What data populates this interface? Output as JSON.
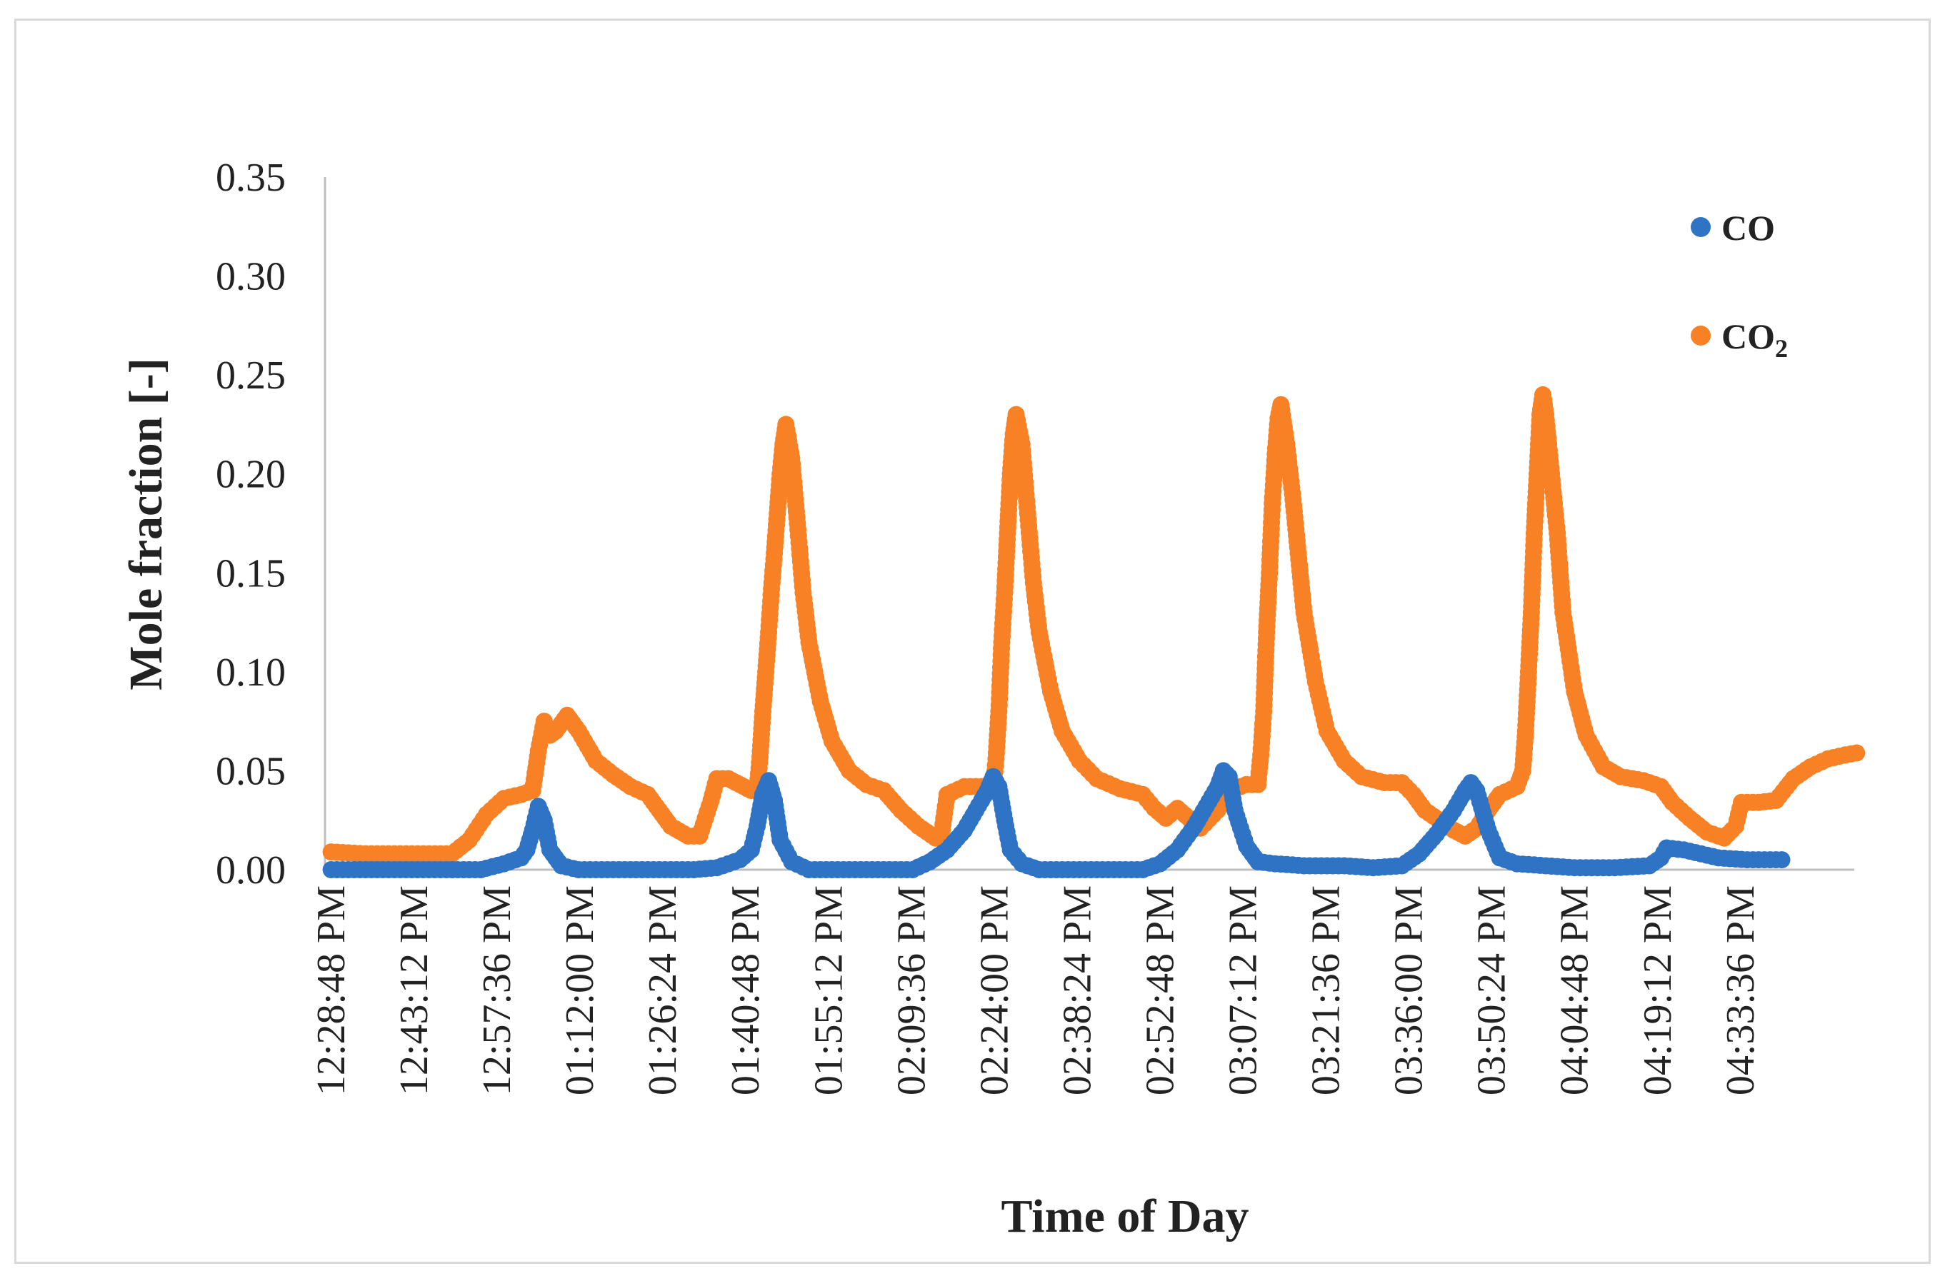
{
  "chart_data": {
    "type": "scatter",
    "title": "",
    "xlabel": "Time of Day",
    "ylabel": "Mole fraction  [-]",
    "ylim": [
      0,
      0.35
    ],
    "xlim_minutes": [
      748.8,
      1013.6
    ],
    "y_ticks": [
      "0.00",
      "0.05",
      "0.10",
      "0.15",
      "0.20",
      "0.25",
      "0.30",
      "0.35"
    ],
    "x_ticks": [
      "12:28:48 PM",
      "12:43:12 PM",
      "12:57:36 PM",
      "01:12:00 PM",
      "01:26:24 PM",
      "01:40:48 PM",
      "01:55:12 PM",
      "02:09:36 PM",
      "02:24:00 PM",
      "02:38:24 PM",
      "02:52:48 PM",
      "03:07:12 PM",
      "03:21:36 PM",
      "03:36:00 PM",
      "03:50:24 PM",
      "04:04:48 PM",
      "04:19:12 PM",
      "04:33:36 PM"
    ],
    "legend_position": "top-right",
    "series": [
      {
        "name": "CO",
        "legend_main": "CO",
        "legend_sub": "",
        "color": "#2f73c5",
        "points_minutes": [
          [
            749,
            0.0
          ],
          [
            755,
            0.0
          ],
          [
            760,
            0.0
          ],
          [
            765,
            0.0
          ],
          [
            770,
            0.0
          ],
          [
            775,
            0.0
          ],
          [
            779,
            0.003
          ],
          [
            782,
            0.006
          ],
          [
            783,
            0.01
          ],
          [
            784,
            0.02
          ],
          [
            785,
            0.032
          ],
          [
            786,
            0.025
          ],
          [
            787,
            0.01
          ],
          [
            789,
            0.002
          ],
          [
            792,
            0.0
          ],
          [
            798,
            0.0
          ],
          [
            805,
            0.0
          ],
          [
            812,
            0.0
          ],
          [
            816,
            0.001
          ],
          [
            820,
            0.005
          ],
          [
            822,
            0.01
          ],
          [
            823,
            0.022
          ],
          [
            824,
            0.038
          ],
          [
            825,
            0.045
          ],
          [
            826,
            0.035
          ],
          [
            827,
            0.015
          ],
          [
            829,
            0.004
          ],
          [
            832,
            0.0
          ],
          [
            838,
            0.0
          ],
          [
            845,
            0.0
          ],
          [
            850,
            0.0
          ],
          [
            853,
            0.004
          ],
          [
            856,
            0.01
          ],
          [
            859,
            0.02
          ],
          [
            861,
            0.03
          ],
          [
            863,
            0.04
          ],
          [
            864,
            0.047
          ],
          [
            865,
            0.042
          ],
          [
            866,
            0.025
          ],
          [
            867,
            0.01
          ],
          [
            869,
            0.003
          ],
          [
            872,
            0.0
          ],
          [
            878,
            0.0
          ],
          [
            885,
            0.0
          ],
          [
            890,
            0.0
          ],
          [
            893,
            0.003
          ],
          [
            896,
            0.01
          ],
          [
            899,
            0.022
          ],
          [
            901,
            0.032
          ],
          [
            903,
            0.042
          ],
          [
            904,
            0.05
          ],
          [
            905,
            0.047
          ],
          [
            906,
            0.03
          ],
          [
            908,
            0.012
          ],
          [
            910,
            0.004
          ],
          [
            913,
            0.003
          ],
          [
            918,
            0.002
          ],
          [
            925,
            0.002
          ],
          [
            930,
            0.001
          ],
          [
            935,
            0.002
          ],
          [
            938,
            0.008
          ],
          [
            941,
            0.018
          ],
          [
            944,
            0.03
          ],
          [
            946,
            0.04
          ],
          [
            947,
            0.044
          ],
          [
            948,
            0.04
          ],
          [
            950,
            0.02
          ],
          [
            952,
            0.006
          ],
          [
            955,
            0.003
          ],
          [
            960,
            0.002
          ],
          [
            965,
            0.001
          ],
          [
            972,
            0.001
          ],
          [
            978,
            0.002
          ],
          [
            980,
            0.006
          ],
          [
            981,
            0.011
          ],
          [
            984,
            0.01
          ],
          [
            987,
            0.008
          ],
          [
            990,
            0.006
          ],
          [
            995,
            0.005
          ],
          [
            1001,
            0.005
          ]
        ]
      },
      {
        "name": "CO2",
        "legend_main": "CO",
        "legend_sub": "2",
        "color": "#f88125",
        "points_minutes": [
          [
            749,
            0.009
          ],
          [
            755,
            0.008
          ],
          [
            760,
            0.008
          ],
          [
            765,
            0.008
          ],
          [
            770,
            0.008
          ],
          [
            773,
            0.015
          ],
          [
            776,
            0.028
          ],
          [
            779,
            0.036
          ],
          [
            782,
            0.038
          ],
          [
            784,
            0.04
          ],
          [
            785,
            0.06
          ],
          [
            786,
            0.075
          ],
          [
            787,
            0.068
          ],
          [
            788,
            0.07
          ],
          [
            790,
            0.078
          ],
          [
            792,
            0.07
          ],
          [
            795,
            0.055
          ],
          [
            798,
            0.048
          ],
          [
            801,
            0.042
          ],
          [
            804,
            0.038
          ],
          [
            806,
            0.03
          ],
          [
            808,
            0.022
          ],
          [
            811,
            0.017
          ],
          [
            813,
            0.017
          ],
          [
            815,
            0.035
          ],
          [
            816,
            0.046
          ],
          [
            818,
            0.046
          ],
          [
            820,
            0.043
          ],
          [
            822,
            0.04
          ],
          [
            823,
            0.04
          ],
          [
            823.5,
            0.057
          ],
          [
            824,
            0.08
          ],
          [
            824.5,
            0.1
          ],
          [
            825,
            0.12
          ],
          [
            825.5,
            0.142
          ],
          [
            826,
            0.16
          ],
          [
            826.5,
            0.18
          ],
          [
            827,
            0.2
          ],
          [
            827.5,
            0.215
          ],
          [
            828,
            0.225
          ],
          [
            829,
            0.208
          ],
          [
            830,
            0.175
          ],
          [
            831,
            0.14
          ],
          [
            832,
            0.115
          ],
          [
            834,
            0.085
          ],
          [
            836,
            0.065
          ],
          [
            839,
            0.05
          ],
          [
            842,
            0.043
          ],
          [
            845,
            0.04
          ],
          [
            848,
            0.03
          ],
          [
            851,
            0.022
          ],
          [
            854,
            0.016
          ],
          [
            855,
            0.017
          ],
          [
            856,
            0.038
          ],
          [
            859,
            0.042
          ],
          [
            862,
            0.042
          ],
          [
            864,
            0.04
          ],
          [
            864.5,
            0.056
          ],
          [
            865,
            0.08
          ],
          [
            865.5,
            0.115
          ],
          [
            866,
            0.14
          ],
          [
            866.5,
            0.17
          ],
          [
            867,
            0.2
          ],
          [
            867.5,
            0.22
          ],
          [
            868,
            0.23
          ],
          [
            869,
            0.215
          ],
          [
            870,
            0.18
          ],
          [
            871,
            0.145
          ],
          [
            872,
            0.12
          ],
          [
            874,
            0.09
          ],
          [
            876,
            0.07
          ],
          [
            879,
            0.055
          ],
          [
            882,
            0.046
          ],
          [
            886,
            0.041
          ],
          [
            890,
            0.038
          ],
          [
            892,
            0.031
          ],
          [
            894,
            0.026
          ],
          [
            896,
            0.031
          ],
          [
            898,
            0.026
          ],
          [
            900,
            0.021
          ],
          [
            903,
            0.03
          ],
          [
            905,
            0.04
          ],
          [
            908,
            0.043
          ],
          [
            910,
            0.043
          ],
          [
            910.5,
            0.058
          ],
          [
            911,
            0.08
          ],
          [
            911.5,
            0.12
          ],
          [
            912,
            0.15
          ],
          [
            912.5,
            0.185
          ],
          [
            913,
            0.21
          ],
          [
            913.5,
            0.228
          ],
          [
            914,
            0.235
          ],
          [
            915,
            0.215
          ],
          [
            916,
            0.19
          ],
          [
            917,
            0.16
          ],
          [
            918,
            0.13
          ],
          [
            920,
            0.095
          ],
          [
            922,
            0.07
          ],
          [
            925,
            0.055
          ],
          [
            928,
            0.047
          ],
          [
            932,
            0.044
          ],
          [
            935,
            0.044
          ],
          [
            937,
            0.038
          ],
          [
            939,
            0.03
          ],
          [
            942,
            0.024
          ],
          [
            944,
            0.02
          ],
          [
            946,
            0.017
          ],
          [
            948,
            0.021
          ],
          [
            950,
            0.03
          ],
          [
            952,
            0.038
          ],
          [
            955,
            0.042
          ],
          [
            956,
            0.05
          ],
          [
            956.5,
            0.07
          ],
          [
            957,
            0.1
          ],
          [
            957.5,
            0.13
          ],
          [
            958,
            0.17
          ],
          [
            958.5,
            0.2
          ],
          [
            959,
            0.23
          ],
          [
            959.5,
            0.24
          ],
          [
            960,
            0.23
          ],
          [
            961,
            0.2
          ],
          [
            962,
            0.17
          ],
          [
            963,
            0.13
          ],
          [
            965,
            0.09
          ],
          [
            967,
            0.068
          ],
          [
            970,
            0.052
          ],
          [
            973,
            0.047
          ],
          [
            977,
            0.045
          ],
          [
            980,
            0.042
          ],
          [
            982,
            0.034
          ],
          [
            985,
            0.026
          ],
          [
            988,
            0.019
          ],
          [
            991,
            0.016
          ],
          [
            993,
            0.022
          ],
          [
            994,
            0.034
          ],
          [
            997,
            0.034
          ],
          [
            1000,
            0.035
          ],
          [
            1003,
            0.046
          ],
          [
            1006,
            0.052
          ],
          [
            1009,
            0.056
          ],
          [
            1012,
            0.058
          ],
          [
            1014,
            0.059
          ]
        ]
      }
    ]
  }
}
